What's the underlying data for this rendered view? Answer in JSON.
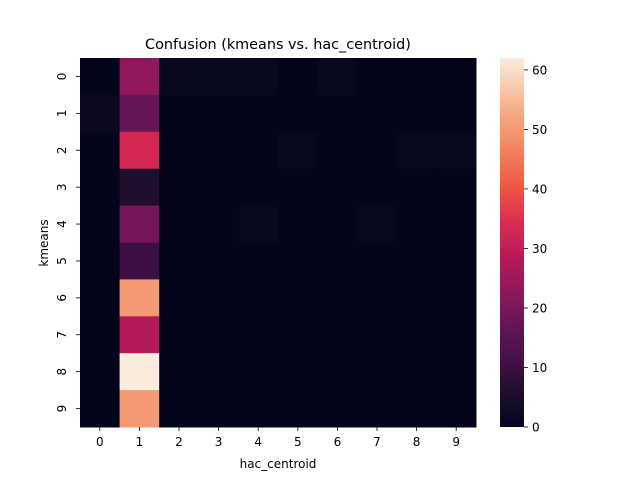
{
  "chart_data": {
    "type": "heatmap",
    "title": "Confusion (kmeans vs. hac_centroid)",
    "xlabel": "hac_centroid",
    "ylabel": "kmeans",
    "x_categories": [
      "0",
      "1",
      "2",
      "3",
      "4",
      "5",
      "6",
      "7",
      "8",
      "9"
    ],
    "y_categories": [
      "0",
      "1",
      "2",
      "3",
      "4",
      "5",
      "6",
      "7",
      "8",
      "9"
    ],
    "values": [
      [
        0,
        23,
        1,
        1,
        1,
        0,
        1,
        0,
        0,
        0
      ],
      [
        2,
        17,
        0,
        0,
        0,
        0,
        0,
        0,
        0,
        0
      ],
      [
        0,
        33,
        0,
        0,
        0,
        1,
        0,
        0,
        1,
        1
      ],
      [
        0,
        6,
        0,
        0,
        0,
        0,
        0,
        0,
        0,
        0
      ],
      [
        0,
        19,
        0,
        0,
        1,
        0,
        0,
        1,
        0,
        0
      ],
      [
        0,
        10,
        0,
        0,
        0,
        0,
        0,
        0,
        0,
        0
      ],
      [
        0,
        50,
        0,
        0,
        0,
        0,
        0,
        0,
        0,
        0
      ],
      [
        0,
        28,
        0,
        0,
        0,
        0,
        0,
        0,
        0,
        0
      ],
      [
        0,
        62,
        0,
        0,
        0,
        0,
        0,
        0,
        0,
        0
      ],
      [
        0,
        50,
        0,
        0,
        0,
        0,
        0,
        0,
        0,
        0
      ]
    ],
    "colorbar": {
      "range": [
        0,
        62
      ],
      "ticks": [
        0,
        10,
        20,
        30,
        40,
        50,
        60
      ],
      "colormap": "rocket"
    },
    "grid": false
  }
}
